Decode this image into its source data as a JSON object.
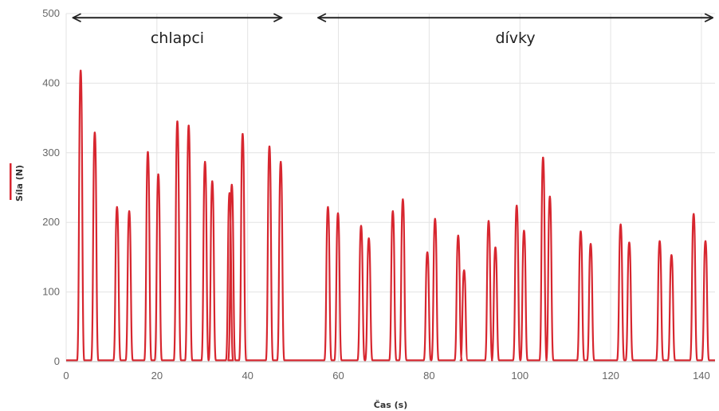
{
  "chart_data": {
    "type": "line",
    "title": "",
    "xlabel": "Čas (s)",
    "ylabel": "Síla (N)",
    "xlim": [
      0,
      143
    ],
    "ylim": [
      0,
      500
    ],
    "xticks": [
      "0",
      "20",
      "40",
      "60",
      "80",
      "100",
      "120",
      "140"
    ],
    "xtick_values": [
      0,
      20,
      40,
      60,
      80,
      100,
      120,
      140
    ],
    "yticks": [
      "0",
      "100",
      "200",
      "300",
      "400",
      "500"
    ],
    "ytick_values": [
      0,
      100,
      200,
      300,
      400,
      500
    ],
    "grid": true,
    "legend_position": "left",
    "series": [
      {
        "name": "Síla (N)",
        "color": "#d7262f",
        "peaks": [
          [
            3.2,
            418
          ],
          [
            6.3,
            329
          ],
          [
            11.2,
            222
          ],
          [
            13.9,
            216
          ],
          [
            18.0,
            301
          ],
          [
            20.3,
            269
          ],
          [
            24.5,
            345
          ],
          [
            27.0,
            339
          ],
          [
            30.6,
            287
          ],
          [
            32.2,
            259
          ],
          [
            36.0,
            242
          ],
          [
            36.5,
            254
          ],
          [
            38.9,
            327
          ],
          [
            44.8,
            309
          ],
          [
            47.3,
            287
          ],
          [
            57.7,
            222
          ],
          [
            59.9,
            213
          ],
          [
            65.0,
            195
          ],
          [
            66.7,
            177
          ],
          [
            72.0,
            216
          ],
          [
            74.2,
            233
          ],
          [
            79.6,
            157
          ],
          [
            81.3,
            205
          ],
          [
            86.4,
            181
          ],
          [
            87.7,
            131
          ],
          [
            93.1,
            202
          ],
          [
            94.6,
            164
          ],
          [
            99.3,
            224
          ],
          [
            100.9,
            188
          ],
          [
            105.1,
            293
          ],
          [
            106.6,
            237
          ],
          [
            113.4,
            187
          ],
          [
            115.6,
            169
          ],
          [
            122.2,
            197
          ],
          [
            124.1,
            171
          ],
          [
            130.8,
            173
          ],
          [
            133.4,
            153
          ],
          [
            138.3,
            212
          ],
          [
            140.9,
            173
          ]
        ]
      }
    ],
    "annotations": [
      {
        "text": "chlapci",
        "from": 1.5,
        "to": 47.5,
        "y": 494
      },
      {
        "text": "dívky",
        "from": 55.5,
        "to": 142.5,
        "y": 494
      }
    ]
  }
}
